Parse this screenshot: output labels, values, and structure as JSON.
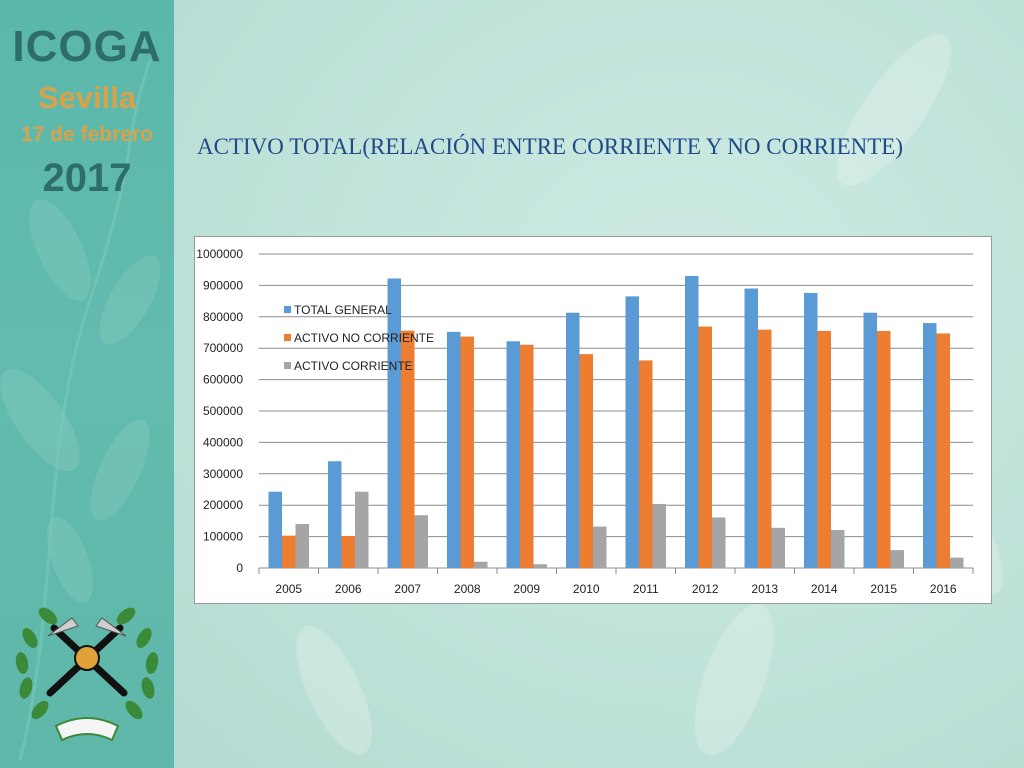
{
  "branding": {
    "name": "ICOGA",
    "city": "Sevilla",
    "date": "17 de febrero",
    "year": "2017"
  },
  "slide": {
    "title": "ACTIVO TOTAL(RELACIÓN ENTRE CORRIENTE Y NO CORRIENTE)"
  },
  "colors": {
    "sidebar": "#5ab8aa",
    "title": "#1f4a87",
    "total_general": "#5b9bd5",
    "activo_no_corriente": "#ed7d31",
    "activo_corriente": "#a5a5a5"
  },
  "chart_data": {
    "type": "bar",
    "title": "",
    "xlabel": "",
    "ylabel": "",
    "ylim": [
      0,
      1000000
    ],
    "yticks": [
      0,
      100000,
      200000,
      300000,
      400000,
      500000,
      600000,
      700000,
      800000,
      900000,
      1000000
    ],
    "grid": true,
    "legend_position": "top-left",
    "categories": [
      "2005",
      "2006",
      "2007",
      "2008",
      "2009",
      "2010",
      "2011",
      "2012",
      "2013",
      "2014",
      "2015",
      "2016"
    ],
    "series": [
      {
        "name": "TOTAL GENERAL",
        "color": "#5b9bd5",
        "values": [
          243000,
          340000,
          922000,
          752000,
          722000,
          813000,
          865000,
          930000,
          890000,
          876000,
          813000,
          780000
        ]
      },
      {
        "name": "ACTIVO NO CORRIENTE",
        "color": "#ed7d31",
        "values": [
          103000,
          102000,
          756000,
          737000,
          711000,
          681000,
          661000,
          769000,
          759000,
          755000,
          755000,
          747000
        ]
      },
      {
        "name": "ACTIVO CORRIENTE",
        "color": "#a5a5a5",
        "values": [
          140000,
          243000,
          168000,
          20000,
          12000,
          132000,
          204000,
          161000,
          128000,
          121000,
          57000,
          33000
        ]
      }
    ]
  }
}
